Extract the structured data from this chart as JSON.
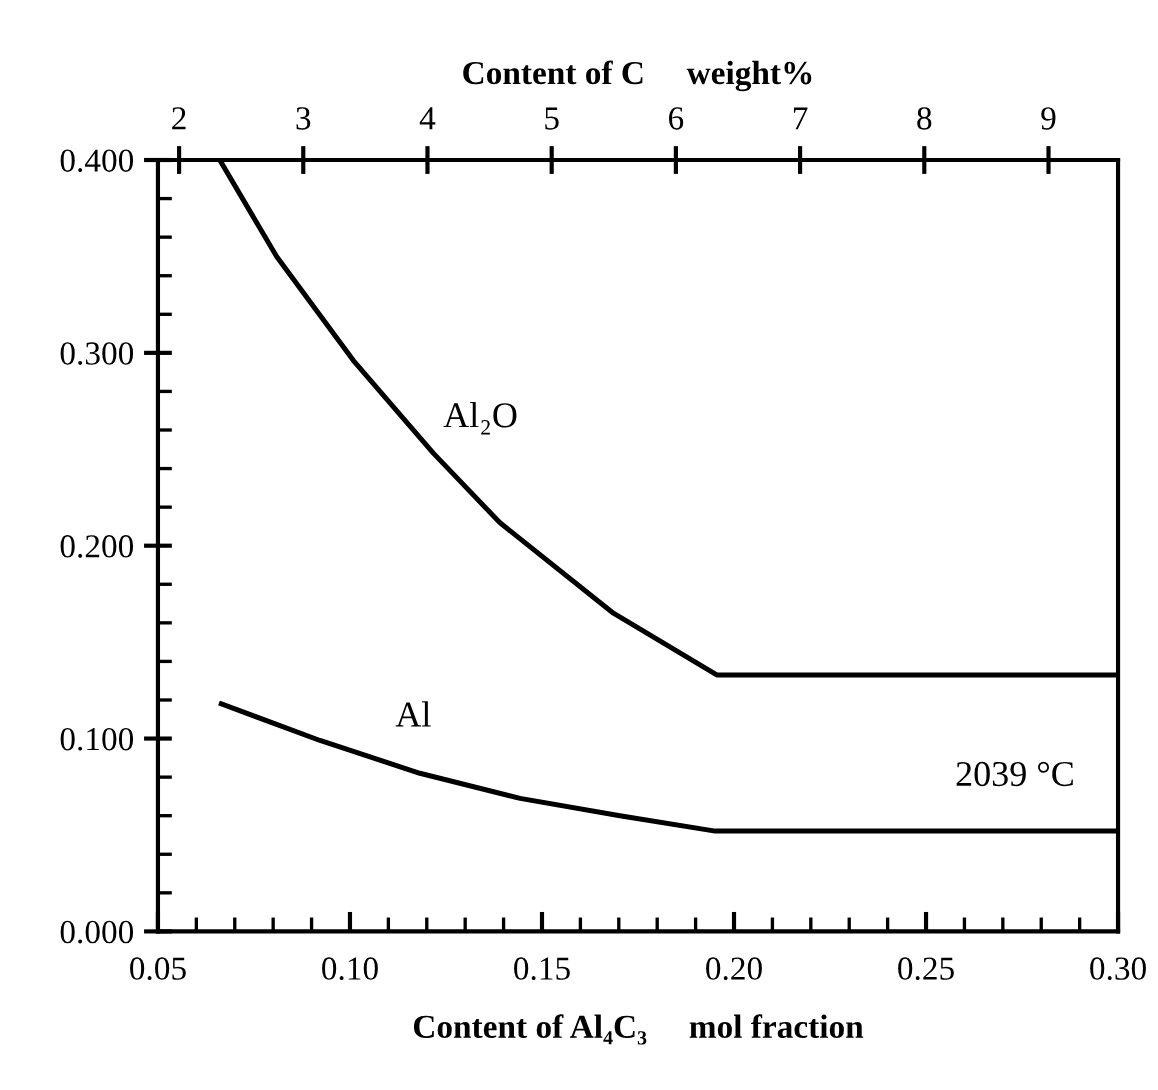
{
  "chart_data": {
    "type": "line",
    "xlabel": "Content of Al₄C₃     mol fraction",
    "x2label": "Content of C     weight%",
    "series": [
      {
        "color": "#000000",
        "x": [
          0.0661,
          0.0809,
          0.1009,
          0.1217,
          0.139,
          0.1686,
          0.1955,
          0.3
        ],
        "values": [
          0.4,
          0.35,
          0.296,
          0.248,
          0.212,
          0.165,
          0.133,
          0.133
        ]
      },
      {
        "color": "#000000",
        "x": [
          0.0665,
          0.0922,
          0.1182,
          0.1443,
          0.1703,
          0.1951,
          0.3
        ],
        "values": [
          0.118,
          0.099,
          0.082,
          0.069,
          0.06,
          0.052,
          0.052
        ]
      }
    ],
    "xlim": [
      0.05,
      0.3
    ],
    "xticks": [
      {
        "value": 0.05,
        "label": "0.05"
      },
      {
        "value": 0.06,
        "label": null
      },
      {
        "value": 0.07,
        "label": null
      },
      {
        "value": 0.08,
        "label": null
      },
      {
        "value": 0.09,
        "label": null
      },
      {
        "value": 0.1,
        "label": "0.10"
      },
      {
        "value": 0.11,
        "label": null
      },
      {
        "value": 0.12,
        "label": null
      },
      {
        "value": 0.13,
        "label": null
      },
      {
        "value": 0.14,
        "label": null
      },
      {
        "value": 0.15,
        "label": "0.15"
      },
      {
        "value": 0.16,
        "label": null
      },
      {
        "value": 0.17,
        "label": null
      },
      {
        "value": 0.18,
        "label": null
      },
      {
        "value": 0.19,
        "label": null
      },
      {
        "value": 0.2,
        "label": "0.20"
      },
      {
        "value": 0.21,
        "label": null
      },
      {
        "value": 0.22,
        "label": null
      },
      {
        "value": 0.23,
        "label": null
      },
      {
        "value": 0.24,
        "label": null
      },
      {
        "value": 0.25,
        "label": "0.25"
      },
      {
        "value": 0.26,
        "label": null
      },
      {
        "value": 0.27,
        "label": null
      },
      {
        "value": 0.28,
        "label": null
      },
      {
        "value": 0.29,
        "label": null
      },
      {
        "value": 0.3,
        "label": "0.30"
      }
    ],
    "ylim": [
      0.0,
      0.4
    ],
    "yticks": [
      {
        "value": 0.0,
        "label": "0.000"
      },
      {
        "value": 0.02,
        "label": null
      },
      {
        "value": 0.04,
        "label": null
      },
      {
        "value": 0.06,
        "label": null
      },
      {
        "value": 0.08,
        "label": null
      },
      {
        "value": 0.1,
        "label": "0.100"
      },
      {
        "value": 0.12,
        "label": null
      },
      {
        "value": 0.14,
        "label": null
      },
      {
        "value": 0.16,
        "label": null
      },
      {
        "value": 0.18,
        "label": null
      },
      {
        "value": 0.2,
        "label": "0.200"
      },
      {
        "value": 0.22,
        "label": null
      },
      {
        "value": 0.24,
        "label": null
      },
      {
        "value": 0.26,
        "label": null
      },
      {
        "value": 0.28,
        "label": null
      },
      {
        "value": 0.3,
        "label": "0.300"
      },
      {
        "value": 0.32,
        "label": null
      },
      {
        "value": 0.34,
        "label": null
      },
      {
        "value": 0.36,
        "label": null
      },
      {
        "value": 0.38,
        "label": null
      },
      {
        "value": 0.4,
        "label": "0.400"
      }
    ],
    "x2lim": [
      1.83,
      9.56
    ],
    "x2ticks": [
      2,
      3,
      4,
      5,
      6,
      7,
      8,
      9
    ],
    "annotations": [
      "Al₂O",
      "Al",
      "2039 °C"
    ],
    "grid": false,
    "legend": false,
    "marker": "none",
    "line_style": "solid"
  }
}
